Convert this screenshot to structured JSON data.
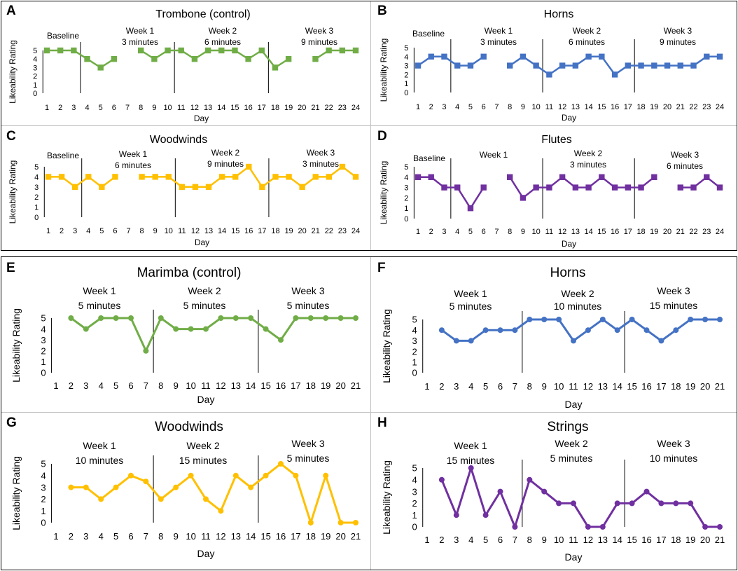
{
  "colors": {
    "green": "#70ad47",
    "blue": "#4472c4",
    "yellow": "#ffc000",
    "purple": "#7030a0"
  },
  "chart_data": [
    {
      "id": "A",
      "type": "line",
      "marker": "square",
      "color": "#70ad47",
      "title": "Trombone (control)",
      "xlabel": "Day",
      "ylabel": "Likeability Rating",
      "ylim": [
        0,
        5
      ],
      "x": [
        1,
        2,
        3,
        4,
        5,
        6,
        7,
        8,
        9,
        10,
        11,
        12,
        13,
        14,
        15,
        16,
        17,
        18,
        19,
        20,
        21,
        22,
        23,
        24
      ],
      "values": [
        5,
        5,
        5,
        4,
        3,
        4,
        null,
        5,
        4,
        5,
        5,
        4,
        5,
        5,
        5,
        4,
        5,
        3,
        4,
        null,
        4,
        5,
        5,
        5
      ],
      "phase_lines_after": [
        3,
        10,
        17
      ],
      "phases": [
        {
          "lines": [
            "Baseline"
          ]
        },
        {
          "lines": [
            "Week 1",
            "3 minutes"
          ]
        },
        {
          "lines": [
            "Week 2",
            "6 minutes"
          ]
        },
        {
          "lines": [
            "Week 3",
            "9 minutes"
          ]
        }
      ]
    },
    {
      "id": "B",
      "type": "line",
      "marker": "square",
      "color": "#4472c4",
      "title": "Horns",
      "xlabel": "Day",
      "ylabel": "Likeability Rating",
      "ylim": [
        0,
        5
      ],
      "x": [
        1,
        2,
        3,
        4,
        5,
        6,
        7,
        8,
        9,
        10,
        11,
        12,
        13,
        14,
        15,
        16,
        17,
        18,
        19,
        20,
        21,
        22,
        23,
        24
      ],
      "values": [
        3,
        4,
        4,
        3,
        3,
        4,
        null,
        3,
        4,
        3,
        2,
        3,
        3,
        4,
        4,
        2,
        3,
        3,
        3,
        3,
        3,
        3,
        4,
        4
      ],
      "phase_lines_after": [
        3,
        10,
        17
      ],
      "phases": [
        {
          "lines": [
            "Baseline"
          ]
        },
        {
          "lines": [
            "Week 1",
            "3 minutes"
          ]
        },
        {
          "lines": [
            "Week 2",
            "6 minutes"
          ]
        },
        {
          "lines": [
            "Week 3",
            "9 minutes"
          ]
        }
      ]
    },
    {
      "id": "C",
      "type": "line",
      "marker": "square",
      "color": "#ffc000",
      "title": "Woodwinds",
      "xlabel": "Day",
      "ylabel": "Likeability Rating",
      "ylim": [
        0,
        5
      ],
      "x": [
        1,
        2,
        3,
        4,
        5,
        6,
        7,
        8,
        9,
        10,
        11,
        12,
        13,
        14,
        15,
        16,
        17,
        18,
        19,
        20,
        21,
        22,
        23,
        24
      ],
      "values": [
        4,
        4,
        3,
        4,
        3,
        4,
        null,
        4,
        4,
        4,
        3,
        3,
        3,
        4,
        4,
        5,
        3,
        4,
        4,
        3,
        4,
        4,
        5,
        4
      ],
      "phase_lines_after": [
        3,
        10,
        17
      ],
      "phases": [
        {
          "lines": [
            "Baseline"
          ]
        },
        {
          "lines": [
            "Week 1",
            "6 minutes"
          ]
        },
        {
          "lines": [
            "Week 2",
            "9 minutes"
          ]
        },
        {
          "lines": [
            "Week 3",
            "3 minutes"
          ]
        }
      ]
    },
    {
      "id": "D",
      "type": "line",
      "marker": "square",
      "color": "#7030a0",
      "title": "Flutes",
      "xlabel": "Day",
      "ylabel": "Likeability Rating",
      "ylim": [
        0,
        5
      ],
      "x": [
        1,
        2,
        3,
        4,
        5,
        6,
        7,
        8,
        9,
        10,
        11,
        12,
        13,
        14,
        15,
        16,
        17,
        18,
        19,
        20,
        21,
        22,
        23,
        24
      ],
      "values": [
        4,
        4,
        3,
        3,
        1,
        3,
        null,
        4,
        2,
        3,
        3,
        4,
        3,
        3,
        4,
        3,
        3,
        3,
        4,
        null,
        3,
        3,
        4,
        3
      ],
      "phase_lines_after": [
        3,
        10,
        17
      ],
      "phases": [
        {
          "lines": [
            "Baseline"
          ]
        },
        {
          "lines": [
            "Week 1"
          ]
        },
        {
          "lines": [
            "Week 2",
            "3 minutes"
          ]
        },
        {
          "lines": [
            "Week 3",
            "6 minutes"
          ]
        }
      ]
    },
    {
      "id": "E",
      "type": "line",
      "marker": "circle",
      "color": "#70ad47",
      "title": "Marimba (control)",
      "xlabel": "Day",
      "ylabel": "Likeability Rating",
      "ylim": [
        0,
        5
      ],
      "x": [
        1,
        2,
        3,
        4,
        5,
        6,
        7,
        8,
        9,
        10,
        11,
        12,
        13,
        14,
        15,
        16,
        17,
        18,
        19,
        20,
        21
      ],
      "values": [
        null,
        5,
        4,
        5,
        5,
        5,
        2,
        5,
        4,
        4,
        4,
        5,
        5,
        5,
        4,
        3,
        5,
        5,
        5,
        5,
        5
      ],
      "phase_lines_after": [
        7,
        14
      ],
      "phases": [
        {
          "lines": [
            "Week 1",
            "5 minutes"
          ]
        },
        {
          "lines": [
            "Week 2",
            "5 minutes"
          ]
        },
        {
          "lines": [
            "Week 3",
            "5 minutes"
          ]
        }
      ]
    },
    {
      "id": "F",
      "type": "line",
      "marker": "circle",
      "color": "#4472c4",
      "title": "Horns",
      "xlabel": "Day",
      "ylabel": "Likeability Rating",
      "ylim": [
        0,
        5
      ],
      "x": [
        1,
        2,
        3,
        4,
        5,
        6,
        7,
        8,
        9,
        10,
        11,
        12,
        13,
        14,
        15,
        16,
        17,
        18,
        19,
        20,
        21
      ],
      "values": [
        null,
        4,
        3,
        3,
        4,
        4,
        4,
        5,
        5,
        5,
        3,
        4,
        5,
        4,
        5,
        4,
        3,
        4,
        5,
        5,
        5
      ],
      "phase_lines_after": [
        7,
        14
      ],
      "phases": [
        {
          "lines": [
            "Week 1",
            "5 minutes"
          ]
        },
        {
          "lines": [
            "Week 2",
            "10 minutes"
          ]
        },
        {
          "lines": [
            "Week 3",
            "15 minutes"
          ]
        }
      ]
    },
    {
      "id": "G",
      "type": "line",
      "marker": "circle",
      "color": "#ffc000",
      "title": "Woodwinds",
      "xlabel": "Day",
      "ylabel": "Likeability Rating",
      "ylim": [
        0,
        5
      ],
      "x": [
        1,
        2,
        3,
        4,
        5,
        6,
        7,
        8,
        9,
        10,
        11,
        12,
        13,
        14,
        15,
        16,
        17,
        18,
        19,
        20,
        21
      ],
      "values": [
        null,
        3,
        3,
        2,
        3,
        4,
        3.5,
        2,
        3,
        4,
        2,
        1,
        4,
        3,
        4,
        5,
        4,
        0,
        4,
        0,
        0
      ],
      "phase_lines_after": [
        7,
        14
      ],
      "phases": [
        {
          "lines": [
            "Week 1",
            "10 minutes"
          ]
        },
        {
          "lines": [
            "Week 2",
            "15 minutes"
          ]
        },
        {
          "lines": [
            "Week 3",
            "5 minutes"
          ]
        }
      ]
    },
    {
      "id": "H",
      "type": "line",
      "marker": "circle",
      "color": "#7030a0",
      "title": "Strings",
      "xlabel": "Day",
      "ylabel": "Likeability Rating",
      "ylim": [
        0,
        5
      ],
      "x": [
        1,
        2,
        3,
        4,
        5,
        6,
        7,
        8,
        9,
        10,
        11,
        12,
        13,
        14,
        15,
        16,
        17,
        18,
        19,
        20,
        21
      ],
      "values": [
        null,
        4,
        1,
        5,
        1,
        3,
        0,
        4,
        3,
        2,
        2,
        0,
        0,
        2,
        2,
        3,
        2,
        2,
        2,
        0,
        0
      ],
      "phase_lines_after": [
        7,
        14
      ],
      "phases": [
        {
          "lines": [
            "Week 1",
            "15 minutes"
          ]
        },
        {
          "lines": [
            "Week 2",
            "5 minutes"
          ]
        },
        {
          "lines": [
            "Week 3",
            "10 minutes"
          ]
        }
      ]
    }
  ]
}
